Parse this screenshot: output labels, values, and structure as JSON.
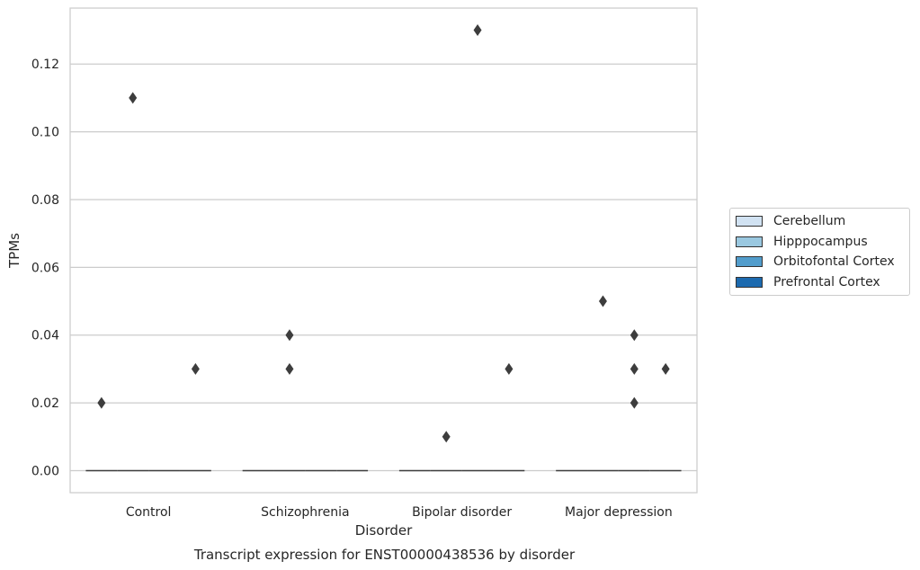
{
  "chart_data": {
    "type": "boxplot",
    "xlabel": "Disorder",
    "ylabel": "TPMs",
    "caption": "Transcript expression for ENST00000438536 by disorder",
    "categories": [
      "Control",
      "Schizophrenia",
      "Bipolar disorder",
      "Major depression"
    ],
    "ylim": [
      -0.0065,
      0.1365
    ],
    "yticks": [
      0.0,
      0.02,
      0.04,
      0.06,
      0.08,
      0.1,
      0.12
    ],
    "ytick_labels": [
      "0.00",
      "0.02",
      "0.04",
      "0.06",
      "0.08",
      "0.10",
      "0.12"
    ],
    "grid": "horizontal",
    "legend_position": "right",
    "series": [
      {
        "name": "Cerebellum",
        "color": "#d1e2f2",
        "median": [
          0,
          0,
          0,
          0
        ],
        "outliers": [
          [
            0.02
          ],
          [],
          [],
          []
        ]
      },
      {
        "name": "Hipppocampus",
        "color": "#9ac8e0",
        "median": [
          0,
          0,
          0,
          0
        ],
        "outliers": [
          [
            0.11
          ],
          [
            0.04,
            0.03
          ],
          [
            0.01
          ],
          [
            0.05
          ]
        ]
      },
      {
        "name": "Orbitofontal Cortex",
        "color": "#529dcc",
        "median": [
          0,
          0,
          0,
          0
        ],
        "outliers": [
          [],
          [],
          [
            0.13
          ],
          [
            0.04,
            0.03,
            0.02
          ]
        ]
      },
      {
        "name": "Prefrontal Cortex",
        "color": "#1c6aaf",
        "median": [
          0,
          0,
          0,
          0
        ],
        "outliers": [
          [
            0.03
          ],
          [],
          [
            0.03
          ],
          [
            0.03
          ]
        ]
      }
    ]
  }
}
